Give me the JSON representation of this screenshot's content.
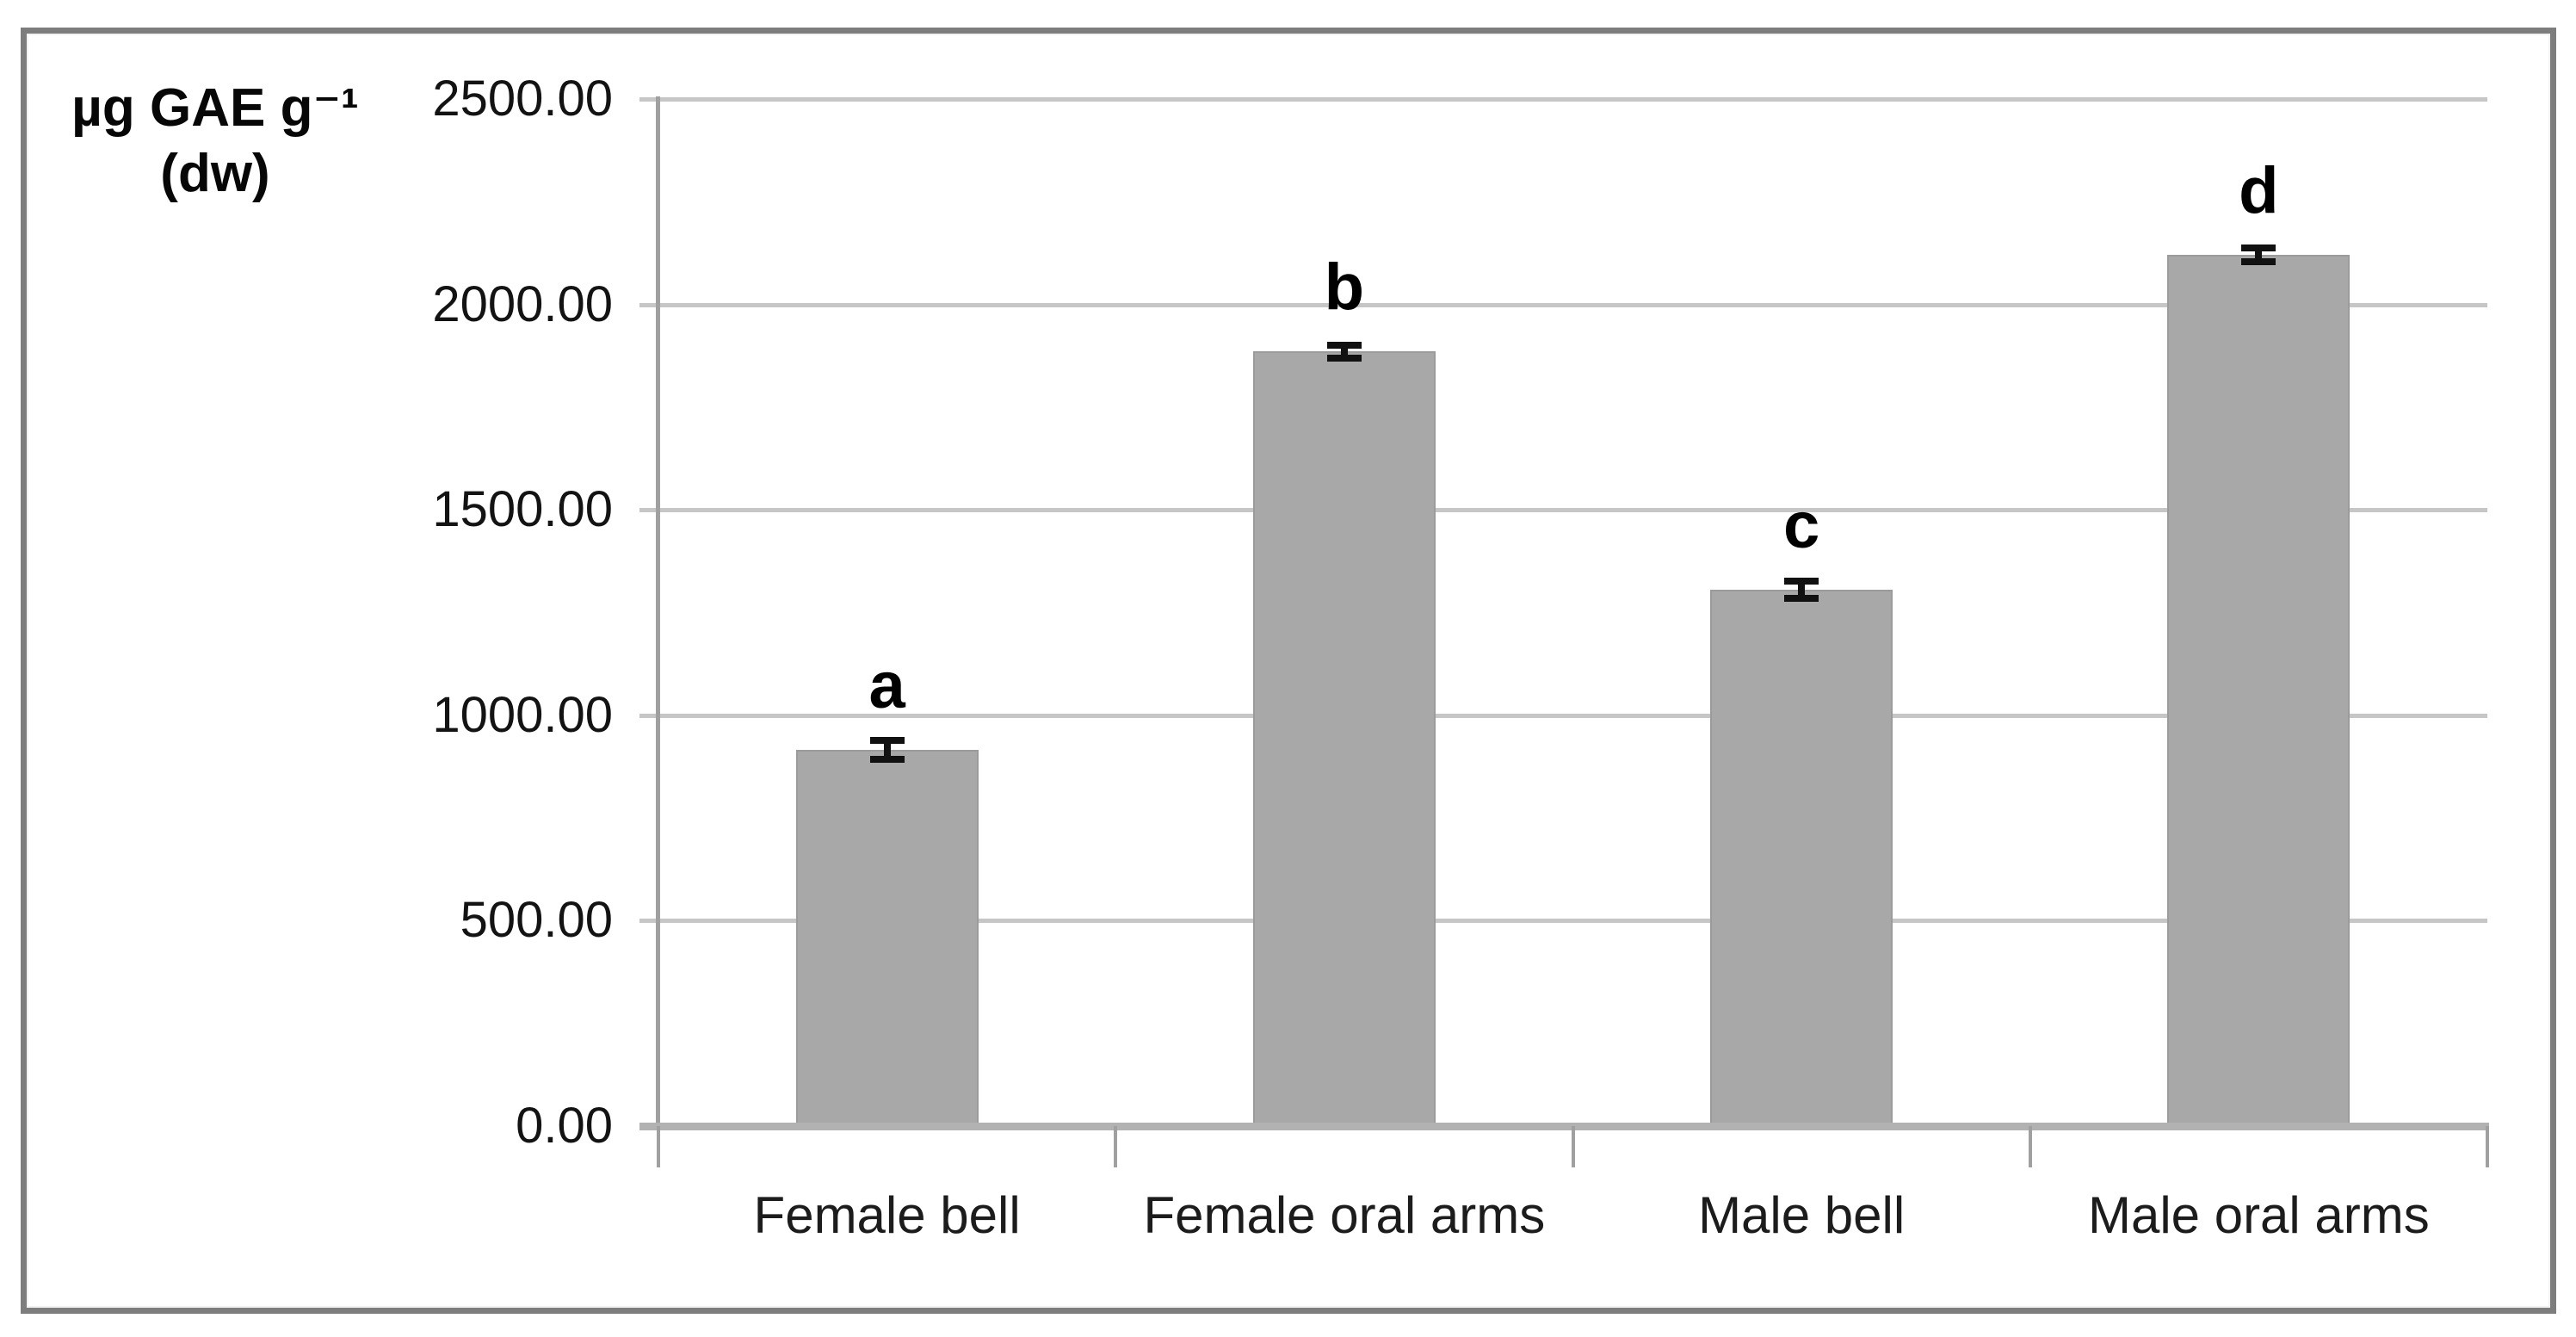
{
  "figure": {
    "y_axis_title_line1": "µg GAE g⁻¹",
    "y_axis_title_line2": "(dw)"
  },
  "chart_data": {
    "type": "bar",
    "title": "",
    "xlabel": "",
    "ylabel": "µg GAE g⁻¹ (dw)",
    "categories": [
      "Female bell",
      "Female oral arms",
      "Male bell",
      "Male oral arms"
    ],
    "values": [
      915,
      1885,
      1305,
      2120
    ],
    "errors": [
      23,
      16,
      21,
      17
    ],
    "bar_letters": [
      "a",
      "b",
      "c",
      "d"
    ],
    "ylim": [
      0,
      2500
    ],
    "ytick_step": 500,
    "ytick_labels": [
      "0.00",
      "500.00",
      "1000.00",
      "1500.00",
      "2000.00",
      "2500.00"
    ],
    "grid": true,
    "legend": false,
    "bar_color": "#a8a8a8",
    "bar_edge_color": "#9b9b9b",
    "gridline_color": "#c6c6c6",
    "axis_color": "#a0a0a0",
    "error_bar_color": "#111111",
    "figure_border_color": "#7d7d7d",
    "text_color": "#131313"
  }
}
